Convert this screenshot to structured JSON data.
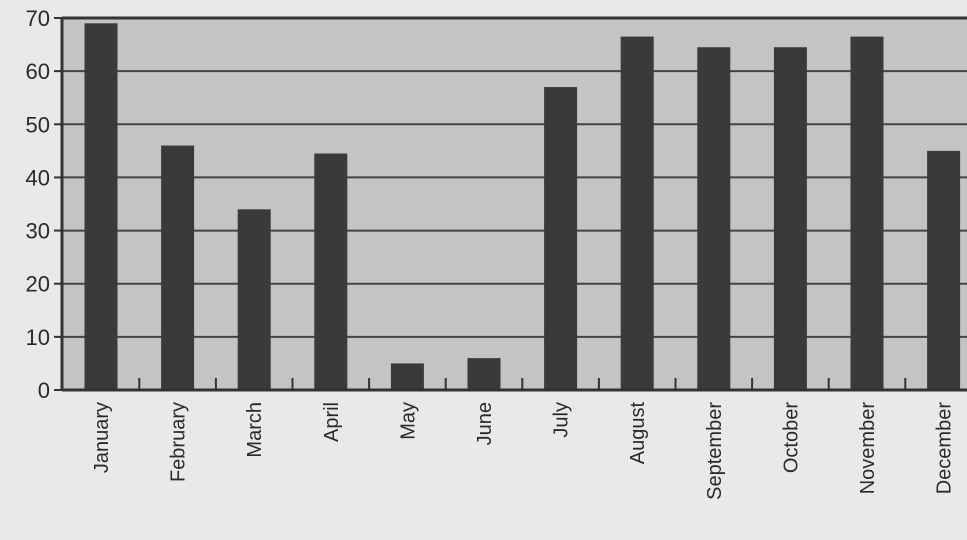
{
  "chart_data": {
    "type": "bar",
    "title": "",
    "xlabel": "",
    "ylabel": "",
    "categories": [
      "January",
      "February",
      "March",
      "April",
      "May",
      "June",
      "July",
      "August",
      "September",
      "October",
      "November",
      "December"
    ],
    "values": [
      69,
      46,
      34,
      44.5,
      5,
      6,
      57,
      66.5,
      64.5,
      64.5,
      66.5,
      45
    ],
    "ylim": [
      0,
      70
    ],
    "yticks": [
      "0",
      "10",
      "20",
      "30",
      "40",
      "50",
      "60",
      "70"
    ],
    "grid": true,
    "colors": {
      "bar": "#3a3a3a",
      "plot_bg": "#c4c4c4",
      "page_bg": "#e9e9e9",
      "grid": "#444444",
      "axis": "#333333"
    }
  }
}
